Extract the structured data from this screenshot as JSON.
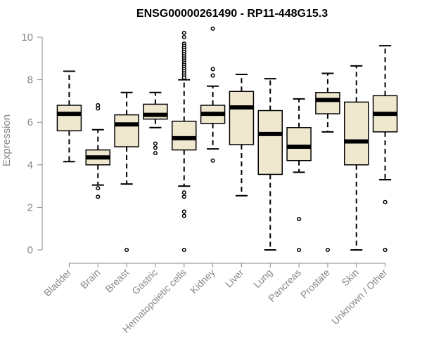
{
  "chart_data": {
    "type": "boxplot",
    "title": "ENSG00000261490 - RP11-448G15.3",
    "xlabel": "",
    "ylabel": "Expression",
    "ylim": [
      0,
      10.5
    ],
    "yticks": [
      0,
      2,
      4,
      6,
      8,
      10
    ],
    "box_color": "#efe8cf",
    "categories": [
      "Bladder",
      "Brain",
      "Breast",
      "Gastric",
      "Hematopoietic cells",
      "Kidney",
      "Liver",
      "Lung",
      "Pancreas",
      "Prostate",
      "Skin",
      "Unknown / Other"
    ],
    "boxes": [
      {
        "q1": 5.6,
        "median": 6.4,
        "q3": 6.8,
        "whisker_low": 4.15,
        "whisker_high": 8.4,
        "outliers": []
      },
      {
        "q1": 4.0,
        "median": 4.35,
        "q3": 4.7,
        "whisker_low": 3.05,
        "whisker_high": 5.65,
        "outliers": [
          6.65,
          6.8,
          2.9,
          2.5
        ]
      },
      {
        "q1": 4.85,
        "median": 5.9,
        "q3": 6.35,
        "whisker_low": 3.1,
        "whisker_high": 7.4,
        "outliers": [
          0.0
        ]
      },
      {
        "q1": 6.15,
        "median": 6.35,
        "q3": 6.85,
        "whisker_low": 5.75,
        "whisker_high": 7.4,
        "outliers": [
          5.0,
          4.8,
          4.55
        ]
      },
      {
        "q1": 4.7,
        "median": 5.25,
        "q3": 6.05,
        "whisker_low": 3.0,
        "whisker_high": 8.0,
        "outliers": [
          10.2,
          10.0,
          9.7,
          9.6,
          9.5,
          9.4,
          9.3,
          9.2,
          9.1,
          9.0,
          8.9,
          8.8,
          8.7,
          8.6,
          8.5,
          8.4,
          8.3,
          8.2,
          8.1,
          2.7,
          2.5,
          1.8,
          1.6,
          0.0
        ]
      },
      {
        "q1": 5.95,
        "median": 6.4,
        "q3": 6.8,
        "whisker_low": 4.75,
        "whisker_high": 7.7,
        "outliers": [
          10.4,
          8.5,
          8.2,
          4.2
        ]
      },
      {
        "q1": 4.95,
        "median": 6.7,
        "q3": 7.45,
        "whisker_low": 2.55,
        "whisker_high": 8.25,
        "outliers": []
      },
      {
        "q1": 3.55,
        "median": 5.45,
        "q3": 6.55,
        "whisker_low": 0.0,
        "whisker_high": 8.05,
        "outliers": []
      },
      {
        "q1": 4.2,
        "median": 4.85,
        "q3": 5.75,
        "whisker_low": 3.65,
        "whisker_high": 7.1,
        "outliers": [
          1.45,
          0.0
        ]
      },
      {
        "q1": 6.4,
        "median": 7.05,
        "q3": 7.4,
        "whisker_low": 5.55,
        "whisker_high": 8.3,
        "outliers": [
          0.0
        ]
      },
      {
        "q1": 4.0,
        "median": 5.1,
        "q3": 6.95,
        "whisker_low": 0.0,
        "whisker_high": 8.65,
        "outliers": []
      },
      {
        "q1": 5.55,
        "median": 6.4,
        "q3": 7.25,
        "whisker_low": 3.3,
        "whisker_high": 9.6,
        "outliers": [
          2.25,
          0.0
        ]
      }
    ]
  }
}
